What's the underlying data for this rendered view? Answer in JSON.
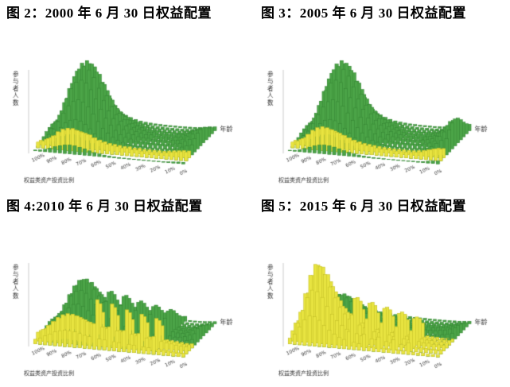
{
  "page": {
    "background": "#ffffff"
  },
  "style": {
    "green": "#4ba447",
    "green_edge": "#2e7b2e",
    "yellow": "#e8e440",
    "yellow_edge": "#b5b01f",
    "axis_text": "#333333"
  },
  "chart_data": [
    {
      "type": "bar",
      "subtype": "3d-surface-bar",
      "title": "图 2：2000 年 6 月 30 日权益配置",
      "zlabel": "参与者人数",
      "xlabel": "权益类资产投资比例",
      "depth_label": "年龄",
      "ratio_ticks": [
        "100%",
        "90%",
        "80%",
        "70%",
        "60%",
        "50%",
        "40%",
        "30%",
        "20%",
        "10%",
        "0%"
      ],
      "value_units": "relative height 0-100 (no numeric axis ticks legible)",
      "green_counts": [
        12,
        18,
        30,
        48,
        68,
        85,
        96,
        100,
        96,
        86,
        72,
        56,
        42,
        32,
        24,
        18,
        14,
        12,
        10,
        9,
        9,
        8,
        8,
        8,
        8,
        9,
        10,
        12,
        16,
        20,
        22
      ],
      "yellow_counts": [
        8,
        10,
        14,
        18,
        24,
        28,
        30,
        30,
        28,
        26,
        24,
        20,
        17,
        15,
        13,
        12,
        11,
        10,
        10,
        9,
        9,
        8,
        8,
        8,
        8,
        8,
        9,
        10,
        11,
        12,
        12
      ],
      "depth_weights": [
        0.12,
        0.22,
        0.38,
        0.6,
        0.82,
        0.96,
        1.0,
        0.92,
        0.75,
        0.55,
        0.38,
        0.25
      ],
      "yellow_rows": [
        {
          "row": 1,
          "w": 1.0
        },
        {
          "row": 2,
          "w": 0.8
        }
      ]
    },
    {
      "type": "bar",
      "subtype": "3d-surface-bar",
      "title": "图 3：2005 年 6 月 30 日权益配置",
      "zlabel": "参与者人数",
      "xlabel": "权益类资产投资比例",
      "depth_label": "年龄",
      "ratio_ticks": [
        "100%",
        "90%",
        "80%",
        "70%",
        "60%",
        "50%",
        "40%",
        "30%",
        "20%",
        "10%",
        "0%"
      ],
      "value_units": "relative height 0-100 (no numeric axis ticks legible)",
      "green_counts": [
        10,
        15,
        26,
        44,
        64,
        82,
        95,
        100,
        97,
        88,
        74,
        58,
        44,
        33,
        25,
        19,
        15,
        12,
        10,
        9,
        8,
        8,
        8,
        8,
        9,
        10,
        12,
        16,
        24,
        32,
        36
      ],
      "yellow_counts": [
        8,
        10,
        14,
        20,
        26,
        30,
        32,
        31,
        29,
        26,
        23,
        20,
        17,
        15,
        13,
        12,
        11,
        10,
        9,
        9,
        8,
        8,
        8,
        8,
        8,
        9,
        10,
        12,
        14,
        16,
        16
      ],
      "depth_weights": [
        0.12,
        0.22,
        0.38,
        0.6,
        0.82,
        0.96,
        1.0,
        0.92,
        0.75,
        0.55,
        0.38,
        0.25
      ],
      "yellow_rows": [
        {
          "row": 1,
          "w": 1.0
        },
        {
          "row": 2,
          "w": 0.8
        }
      ]
    },
    {
      "type": "bar",
      "subtype": "3d-surface-bar",
      "title": "图 4:2010 年 6 月 30 日权益配置",
      "zlabel": "参与者人数",
      "xlabel": "权益类资产投资比例",
      "depth_label": "年龄",
      "ratio_ticks": [
        "100%",
        "90%",
        "80%",
        "70%",
        "60%",
        "50%",
        "40%",
        "30%",
        "20%",
        "10%",
        "0%"
      ],
      "value_units": "relative height 0-100 (no numeric axis ticks legible)",
      "green_counts": [
        10,
        14,
        22,
        34,
        48,
        60,
        68,
        70,
        66,
        58,
        50,
        42,
        56,
        30,
        26,
        52,
        20,
        18,
        46,
        15,
        14,
        42,
        12,
        12,
        38,
        11,
        10,
        10,
        12,
        15,
        18
      ],
      "yellow_counts": [
        12,
        16,
        22,
        28,
        34,
        38,
        40,
        40,
        38,
        35,
        32,
        30,
        62,
        26,
        25,
        58,
        23,
        22,
        52,
        20,
        19,
        48,
        17,
        16,
        44,
        14,
        13,
        12,
        11,
        10,
        10
      ],
      "depth_weights": [
        0.15,
        0.28,
        0.45,
        0.65,
        0.85,
        1.0,
        0.95,
        0.8,
        0.6,
        0.42,
        0.28,
        0.18
      ],
      "yellow_rows": [
        {
          "row": 0,
          "w": 0.55
        },
        {
          "row": 1,
          "w": 1.0
        },
        {
          "row": 2,
          "w": 0.85
        },
        {
          "row": 3,
          "w": 0.6
        }
      ]
    },
    {
      "type": "bar",
      "subtype": "3d-surface-bar",
      "title": "图 5：2015 年 6 月 30 日权益配置",
      "zlabel": "参与者人数",
      "xlabel": "权益类资产投资比例",
      "depth_label": "年龄",
      "ratio_ticks": [
        "100%",
        "90%",
        "80%",
        "70%",
        "60%",
        "50%",
        "40%",
        "30%",
        "20%",
        "10%",
        "0%"
      ],
      "value_units": "relative height 0-100 (no numeric axis ticks legible)",
      "green_counts": [
        8,
        12,
        18,
        26,
        34,
        40,
        44,
        45,
        42,
        38,
        33,
        28,
        24,
        21,
        18,
        16,
        14,
        13,
        12,
        11,
        10,
        10,
        9,
        9,
        9,
        9,
        9,
        10,
        11,
        13,
        15
      ],
      "yellow_counts": [
        20,
        35,
        60,
        85,
        100,
        98,
        88,
        72,
        58,
        46,
        38,
        32,
        60,
        25,
        22,
        55,
        18,
        17,
        50,
        15,
        14,
        45,
        12,
        11,
        40,
        10,
        9,
        9,
        8,
        8,
        8
      ],
      "depth_weights": [
        0.05,
        0.1,
        0.2,
        0.35,
        0.55,
        0.8,
        1.0,
        0.95,
        0.8,
        0.6,
        0.4,
        0.25
      ],
      "yellow_rows": [
        {
          "row": 0,
          "w": 0.4
        },
        {
          "row": 1,
          "w": 0.7
        },
        {
          "row": 2,
          "w": 1.0
        },
        {
          "row": 3,
          "w": 0.95
        },
        {
          "row": 4,
          "w": 0.8
        },
        {
          "row": 5,
          "w": 0.55
        }
      ]
    }
  ]
}
